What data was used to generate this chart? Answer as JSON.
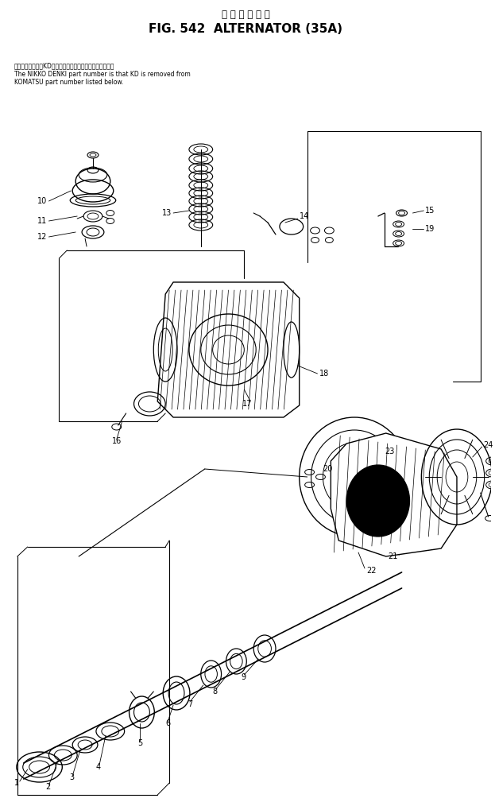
{
  "title_japanese": "オ ル タ ネ ー タ",
  "title_main": "FIG. 542  ALTERNATOR (35A)",
  "note_line1": "品番のメーカ記号KDを除いたものが日興電機の品番です。",
  "note_line2": "The NIKKO DENKI part number is that KD is removed from",
  "note_line3": "KOMATSU part number listed below.",
  "bg_color": "#ffffff",
  "lc": "#000000"
}
